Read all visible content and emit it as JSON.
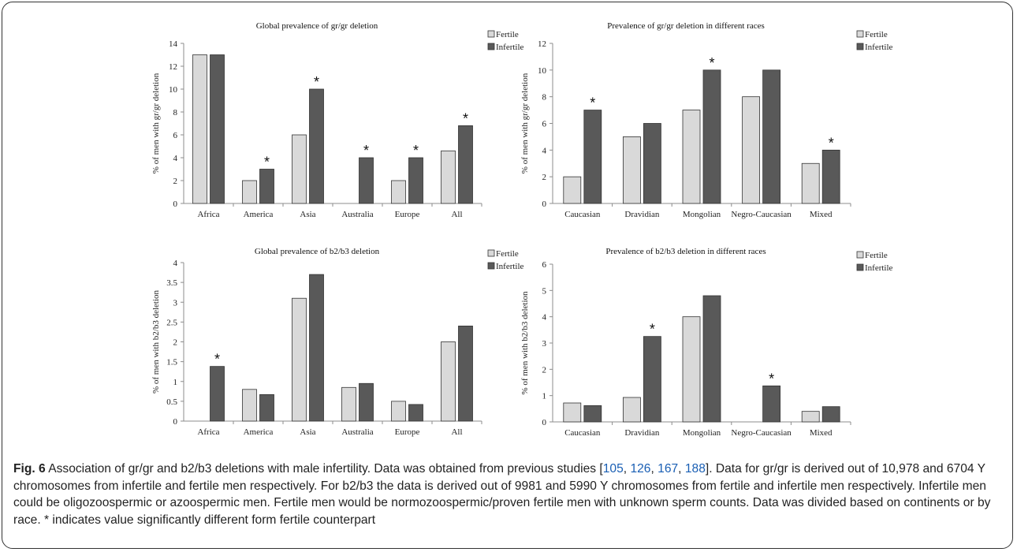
{
  "caption": {
    "label": "Fig. 6",
    "part1": " Association of gr/gr and b2/b3 deletions with male infertility. Data was obtained from previous studies [",
    "refs": [
      "105",
      "126",
      "167",
      "188"
    ],
    "part2": "]. Data for gr/gr is derived out of 10,978 and 6704 Y chromosomes from infertile and fertile men respectively. For b2/b3 the data is derived out of 9981 and 5990 Y chromosomes from fertile and infertile men respectively. Infertile men could be oligozoospermic or azoospermic men. Fertile men would be normozoospermic/proven fertile men with unknown sperm counts. Data was divided based on continents or by race. * indicates value significantly different form fertile counterpart"
  },
  "colors": {
    "fertile": "#d9d9d9",
    "infertile": "#595959",
    "axis": "#8c8c8c"
  },
  "chart_data": [
    {
      "type": "bar",
      "title": "Global prevalence of gr/gr deletion",
      "ylabel": "% of men with gr/gr deletion",
      "ylim": [
        0,
        14
      ],
      "yticks": [
        "0",
        "2",
        "4",
        "6",
        "8",
        "10",
        "12",
        "14"
      ],
      "categories": [
        "Africa",
        "America",
        "Asia",
        "Australia",
        "Europe",
        "All"
      ],
      "series": [
        {
          "name": "Fertile",
          "values": [
            13,
            2,
            6,
            0,
            2,
            4.6
          ]
        },
        {
          "name": "Infertile",
          "values": [
            13,
            3,
            10,
            4,
            4,
            6.8
          ]
        }
      ],
      "significant": [
        false,
        true,
        true,
        true,
        true,
        true
      ],
      "significance_marker": "*",
      "legend": "top-right"
    },
    {
      "type": "bar",
      "title": "Prevalence of gr/gr deletion in different races",
      "ylabel": "% of men with gr/gr deletion",
      "ylim": [
        0,
        12
      ],
      "yticks": [
        "0",
        "2",
        "4",
        "6",
        "8",
        "10",
        "12"
      ],
      "categories": [
        "Caucasian",
        "Dravidian",
        "Mongolian",
        "Negro-Caucasian",
        "Mixed"
      ],
      "series": [
        {
          "name": "Fertile",
          "values": [
            2,
            5,
            7,
            8,
            3
          ]
        },
        {
          "name": "Infertile",
          "values": [
            7,
            6,
            10,
            10,
            4
          ]
        }
      ],
      "significant": [
        true,
        false,
        true,
        false,
        true
      ],
      "significance_marker": "*",
      "legend": "top-right"
    },
    {
      "type": "bar",
      "title": "Global prevalence of b2/b3 deletion",
      "ylabel": "% of men with b2/b3 deletion",
      "ylim": [
        0,
        4
      ],
      "yticks": [
        "0",
        "0.5",
        "1",
        "1.5",
        "2",
        "2.5",
        "3",
        "3.5",
        "4"
      ],
      "categories": [
        "Africa",
        "America",
        "Asia",
        "Australia",
        "Europe",
        "All"
      ],
      "series": [
        {
          "name": "Fertile",
          "values": [
            0,
            0.8,
            3.1,
            0.85,
            0.5,
            2.0
          ]
        },
        {
          "name": "Infertile",
          "values": [
            1.38,
            0.67,
            3.7,
            0.95,
            0.42,
            2.4
          ]
        }
      ],
      "significant": [
        true,
        false,
        false,
        false,
        false,
        false
      ],
      "significance_marker": "*",
      "legend": "top-right"
    },
    {
      "type": "bar",
      "title": "Prevalence of b2/b3 deletion in different races",
      "ylabel": "% of men with b2/b3 deletion",
      "ylim": [
        0,
        6
      ],
      "yticks": [
        "0",
        "1",
        "2",
        "3",
        "4",
        "5",
        "6"
      ],
      "categories": [
        "Caucasian",
        "Dravidian",
        "Mongolian",
        "Negro-Caucasian",
        "Mixed"
      ],
      "series": [
        {
          "name": "Fertile",
          "values": [
            0.72,
            0.93,
            4.0,
            0,
            0.4
          ]
        },
        {
          "name": "Infertile",
          "values": [
            0.62,
            3.25,
            4.8,
            1.37,
            0.58
          ]
        }
      ],
      "significant": [
        false,
        true,
        false,
        true,
        false
      ],
      "significance_marker": "*",
      "legend": "top-right"
    }
  ]
}
